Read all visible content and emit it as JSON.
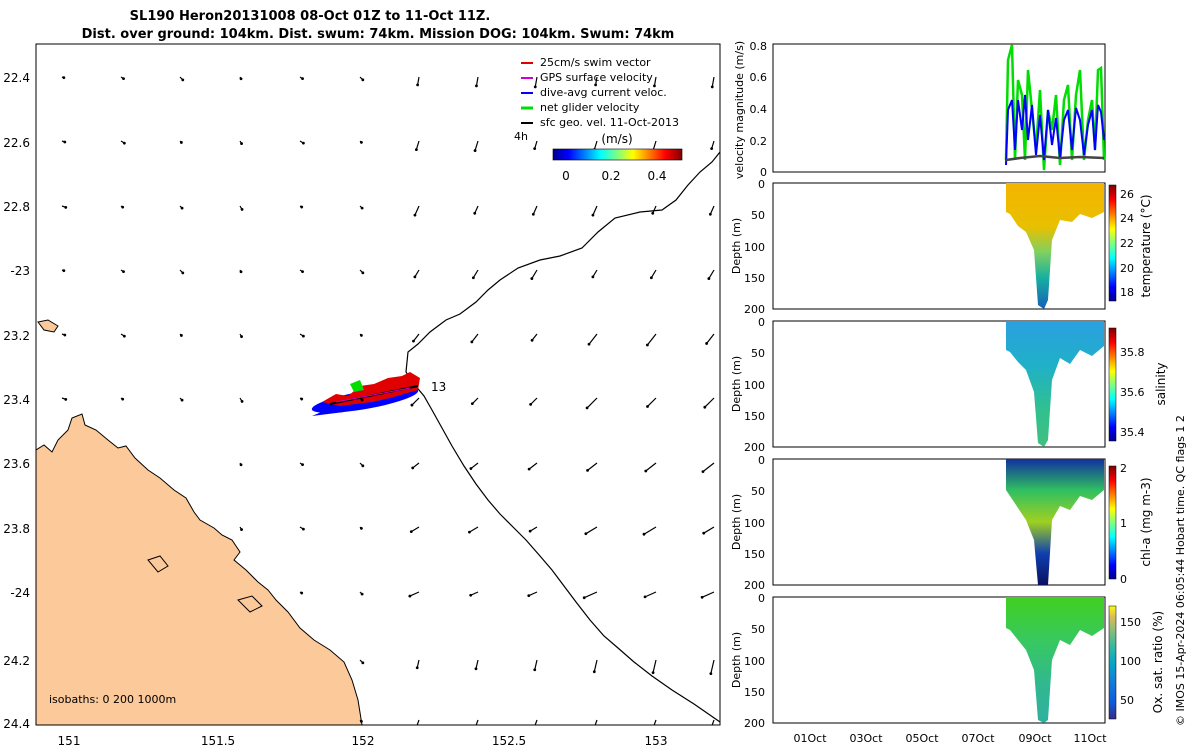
{
  "title": {
    "line1": "SL190 Heron20131008 08-Oct 01Z to 11-Oct 11Z.",
    "line2": "Dist. over ground: 104km. Dist. swum: 74km. Mission DOG: 104km. Swum: 74km"
  },
  "map": {
    "lat_ticks": [
      "22.4",
      "22.6",
      "22.8",
      "-23",
      "23.2",
      "23.4",
      "23.6",
      "23.8",
      "-24",
      "24.2",
      "24.4"
    ],
    "lon_ticks": [
      "151",
      "151.5",
      "152",
      "152.5",
      "153"
    ],
    "isobaths_label": "isobaths: 0   200  1000m",
    "end_label": "13",
    "legend": [
      {
        "label": "25cm/s swim vector",
        "color": "#e00000"
      },
      {
        "label": "GPS surface velocity",
        "color": "#d000d0"
      },
      {
        "label": "dive-avg current veloc.",
        "color": "#0000ff"
      },
      {
        "label": "net glider velocity",
        "color": "#00dd00"
      },
      {
        "label": "sfc geo. vel. 11-Oct-2013",
        "color": "#000000"
      }
    ],
    "speed_label": "4h",
    "colorbar": {
      "title": "(m/s)",
      "ticks": [
        "0",
        "0.2",
        "0.4"
      ]
    },
    "land_color": "#fbc99a",
    "colors": {
      "swim": "#e00000",
      "current": "#0000ff",
      "net": "#00dd00",
      "gps": "#d000d0",
      "geo": "#000000"
    }
  },
  "panels": {
    "velocity": {
      "ylabel": "velocity magnitude (m/s)",
      "yticks": [
        "0.8",
        "0.6",
        "0.4",
        "0.2",
        "0"
      ]
    },
    "temperature": {
      "ylabel": "Depth (m)",
      "clabel": "temperature (°C)",
      "cticks": [
        "26",
        "24",
        "22",
        "20",
        "18"
      ]
    },
    "salinity": {
      "ylabel": "Depth (m)",
      "clabel": "salinity",
      "cticks": [
        "35.8",
        "35.6",
        "35.4"
      ]
    },
    "chla": {
      "ylabel": "Depth (m)",
      "clabel": "chl-a (mg m-3)",
      "cticks": [
        "2",
        "1",
        "0"
      ]
    },
    "oxygen": {
      "ylabel": "Depth (m)",
      "clabel": "Ox. sat. ratio (%)",
      "cticks": [
        "150",
        "100",
        "50"
      ]
    },
    "depth_ticks": [
      "0",
      "50",
      "100",
      "150",
      "200"
    ],
    "time_ticks": [
      "01Oct",
      "03Oct",
      "05Oct",
      "07Oct",
      "09Oct",
      "11Oct"
    ]
  },
  "credit": "© IMOS 15-Apr-2024 06:05:44 Hobart time. QC flags 1  2"
}
